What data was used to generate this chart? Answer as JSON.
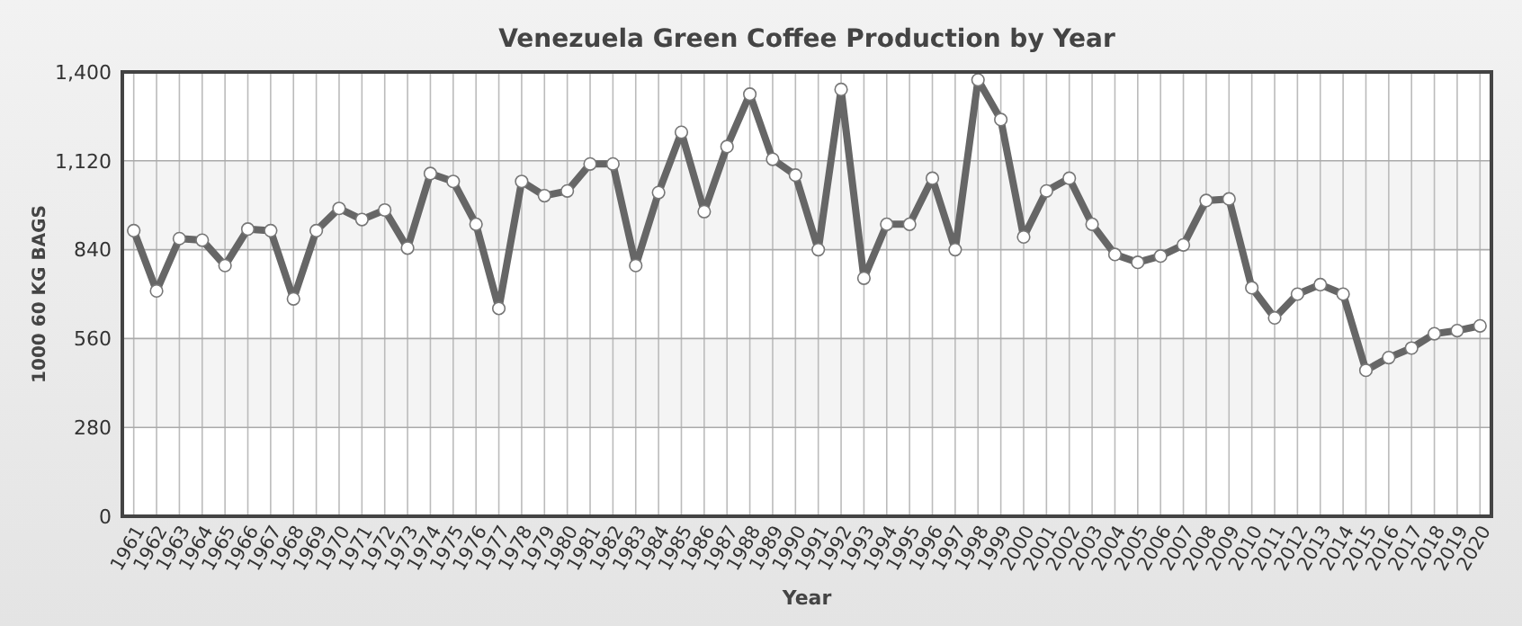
{
  "chart_data": {
    "type": "line",
    "title": "Venezuela Green Coffee Production by Year",
    "xlabel": "Year",
    "ylabel": "1000 60 KG BAGS",
    "categories": [
      "1961",
      "1962",
      "1963",
      "1964",
      "1965",
      "1966",
      "1967",
      "1968",
      "1969",
      "1970",
      "1971",
      "1972",
      "1973",
      "1974",
      "1975",
      "1976",
      "1977",
      "1978",
      "1979",
      "1980",
      "1981",
      "1982",
      "1983",
      "1984",
      "1985",
      "1986",
      "1987",
      "1988",
      "1989",
      "1990",
      "1991",
      "1992",
      "1993",
      "1994",
      "1995",
      "1996",
      "1997",
      "1998",
      "1999",
      "2000",
      "2001",
      "2002",
      "2003",
      "2004",
      "2005",
      "2006",
      "2007",
      "2008",
      "2009",
      "2010",
      "2011",
      "2012",
      "2013",
      "2014",
      "2015",
      "2016",
      "2017",
      "2018",
      "2019",
      "2020"
    ],
    "series": [
      {
        "color": "#666666",
        "values": [
          900,
          710,
          875,
          870,
          790,
          905,
          900,
          685,
          900,
          970,
          935,
          965,
          845,
          1080,
          1055,
          920,
          655,
          1055,
          1010,
          1025,
          1110,
          1110,
          790,
          1020,
          1210,
          960,
          1165,
          1330,
          1125,
          1075,
          840,
          1345,
          750,
          920,
          920,
          1065,
          840,
          1375,
          1250,
          880,
          1025,
          1065,
          920,
          825,
          800,
          820,
          855,
          995,
          1000,
          720,
          625,
          700,
          730,
          700,
          460,
          500,
          530,
          575,
          585,
          600
        ]
      }
    ],
    "ylim": [
      0,
      1400
    ],
    "yticks": [
      0,
      {
        "value": 280,
        "label": "280"
      },
      {
        "value": 560,
        "label": "560"
      },
      {
        "value": 840,
        "label": "840"
      },
      {
        "value": 1120,
        "label": "1,120"
      },
      {
        "value": 1400,
        "label": "1,400"
      }
    ],
    "grid": true,
    "marker": "circle",
    "line_style": "solid"
  }
}
